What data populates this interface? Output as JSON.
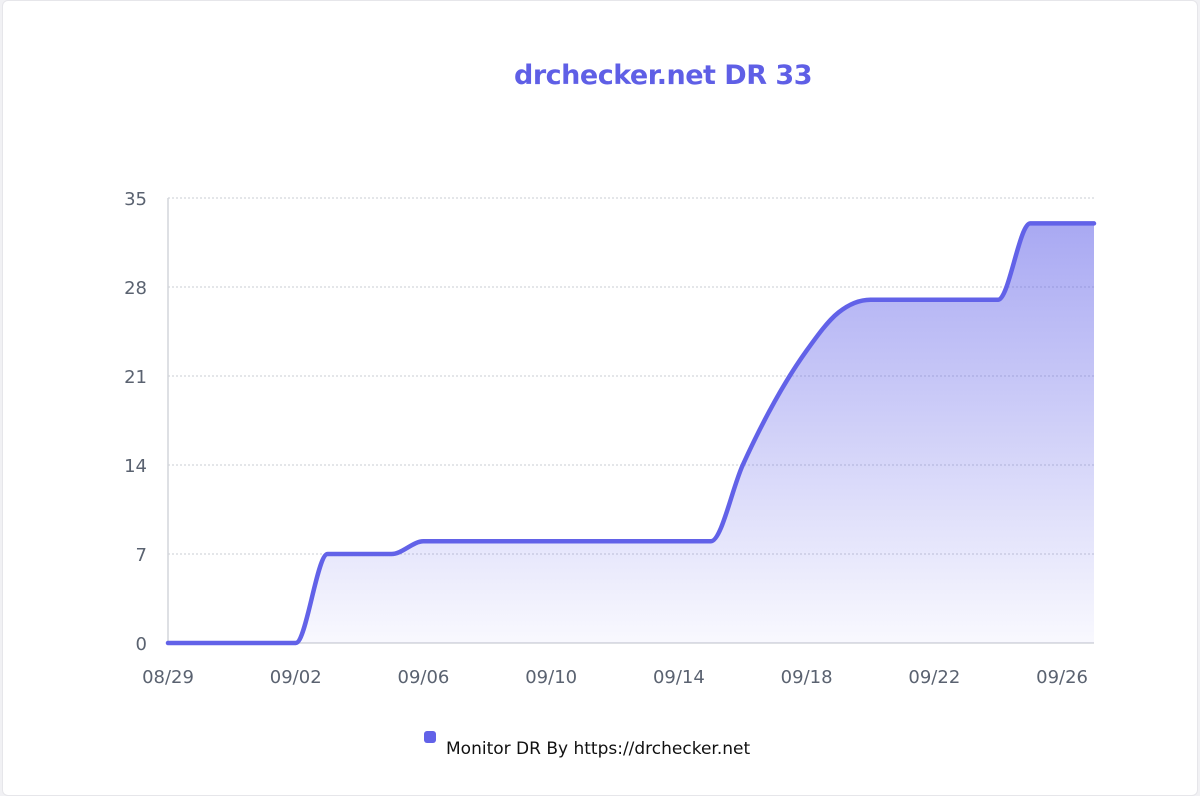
{
  "chart_data": {
    "type": "area",
    "title": "drchecker.net DR 33",
    "xlabel": "",
    "ylabel": "",
    "x_ticks": [
      "08/29",
      "09/02",
      "09/06",
      "09/10",
      "09/14",
      "09/18",
      "09/22",
      "09/26"
    ],
    "y_ticks": [
      0,
      7,
      14,
      21,
      28,
      35
    ],
    "ylim": [
      0,
      35
    ],
    "grid": true,
    "legend_position": "bottom",
    "series": [
      {
        "name": "Monitor DR By https://drchecker.net",
        "color": "#6262e8",
        "x": [
          "08/29",
          "08/30",
          "08/31",
          "09/01",
          "09/02",
          "09/03",
          "09/04",
          "09/05",
          "09/06",
          "09/07",
          "09/08",
          "09/09",
          "09/10",
          "09/11",
          "09/12",
          "09/13",
          "09/14",
          "09/15",
          "09/16",
          "09/17",
          "09/18",
          "09/19",
          "09/20",
          "09/21",
          "09/22",
          "09/23",
          "09/24",
          "09/25",
          "09/26",
          "09/27"
        ],
        "values": [
          0,
          0,
          0,
          0,
          0,
          7,
          7,
          7,
          8,
          8,
          8,
          8,
          8,
          8,
          8,
          8,
          8,
          8,
          14,
          19,
          23,
          26,
          27,
          27,
          27,
          27,
          27,
          33,
          33,
          33
        ]
      }
    ]
  }
}
